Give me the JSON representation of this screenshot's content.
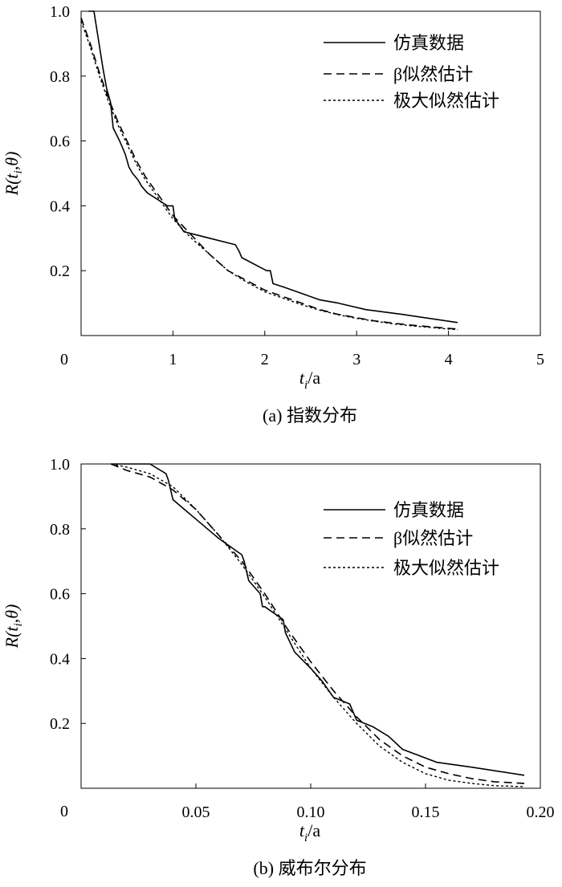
{
  "chart_data": [
    {
      "type": "line",
      "caption": "(a) 指数分布",
      "xlabel": "t_i/a",
      "ylabel": "R(t_i,θ)",
      "xlim": [
        0,
        5
      ],
      "ylim": [
        0,
        1.0
      ],
      "xticks": [
        "0",
        "1",
        "2",
        "3",
        "4",
        "5"
      ],
      "xtick_values": [
        0,
        1,
        2,
        3,
        4,
        5
      ],
      "yticks": [
        "0.2",
        "0.4",
        "0.6",
        "0.8",
        "1.0"
      ],
      "ytick_values": [
        0.2,
        0.4,
        0.6,
        0.8,
        1.0
      ],
      "origin_label": "0",
      "legend_position": "top-right",
      "series": [
        {
          "name": "仿真数据",
          "style": "solid",
          "x": [
            0.08,
            0.14,
            0.24,
            0.28,
            0.32,
            0.35,
            0.42,
            0.48,
            0.52,
            0.56,
            0.62,
            0.66,
            0.72,
            0.94,
            1.0,
            1.02,
            1.12,
            1.68,
            1.72,
            1.75,
            2.02,
            2.06,
            2.09,
            2.2,
            2.4,
            2.6,
            2.8,
            3.1,
            3.5,
            4.1
          ],
          "y": [
            1.0,
            1.0,
            0.82,
            0.76,
            0.72,
            0.64,
            0.6,
            0.56,
            0.52,
            0.5,
            0.48,
            0.46,
            0.44,
            0.4,
            0.4,
            0.36,
            0.32,
            0.28,
            0.26,
            0.24,
            0.2,
            0.2,
            0.16,
            0.15,
            0.13,
            0.11,
            0.1,
            0.08,
            0.065,
            0.04
          ]
        },
        {
          "name": "β似然估计",
          "style": "dashed",
          "x": [
            0.0,
            0.1,
            0.2,
            0.3,
            0.4,
            0.5,
            0.6,
            0.7,
            0.8,
            0.9,
            1.0,
            1.2,
            1.4,
            1.6,
            1.8,
            2.0,
            2.2,
            2.4,
            2.6,
            2.8,
            3.0,
            3.2,
            3.4,
            3.6,
            3.8,
            4.0,
            4.1
          ],
          "y": [
            0.98,
            0.9,
            0.81,
            0.73,
            0.66,
            0.6,
            0.54,
            0.49,
            0.45,
            0.41,
            0.37,
            0.31,
            0.25,
            0.2,
            0.17,
            0.14,
            0.12,
            0.1,
            0.08,
            0.065,
            0.055,
            0.045,
            0.038,
            0.032,
            0.027,
            0.022,
            0.02
          ]
        },
        {
          "name": "极大似然估计",
          "style": "dotted",
          "x": [
            0.0,
            0.1,
            0.2,
            0.3,
            0.4,
            0.5,
            0.6,
            0.7,
            0.8,
            0.9,
            1.0,
            1.2,
            1.4,
            1.6,
            1.8,
            2.0,
            2.2,
            2.4,
            2.6,
            2.8,
            3.0,
            3.2,
            3.4,
            3.6,
            3.8,
            4.0,
            4.1
          ],
          "y": [
            0.97,
            0.89,
            0.8,
            0.72,
            0.65,
            0.59,
            0.53,
            0.48,
            0.44,
            0.4,
            0.36,
            0.3,
            0.25,
            0.2,
            0.165,
            0.135,
            0.115,
            0.095,
            0.078,
            0.064,
            0.053,
            0.044,
            0.036,
            0.03,
            0.025,
            0.02,
            0.018
          ]
        }
      ]
    },
    {
      "type": "line",
      "caption": "(b) 威布尔分布",
      "xlabel": "t_i/a",
      "ylabel": "R(t_i,θ)",
      "xlim": [
        0,
        0.2
      ],
      "ylim": [
        0,
        1.0
      ],
      "xticks": [
        "0.05",
        "0.10",
        "0.15",
        "0.20"
      ],
      "xtick_values": [
        0.05,
        0.1,
        0.15,
        0.2
      ],
      "yticks": [
        "0.2",
        "0.4",
        "0.6",
        "0.8",
        "1.0"
      ],
      "ytick_values": [
        0.2,
        0.4,
        0.6,
        0.8,
        1.0
      ],
      "origin_label": "0",
      "legend_position": "top-right",
      "series": [
        {
          "name": "仿真数据",
          "style": "solid",
          "x": [
            0.013,
            0.03,
            0.037,
            0.038,
            0.04,
            0.045,
            0.05,
            0.055,
            0.06,
            0.07,
            0.071,
            0.073,
            0.078,
            0.079,
            0.08,
            0.088,
            0.089,
            0.093,
            0.1,
            0.105,
            0.11,
            0.117,
            0.12,
            0.127,
            0.134,
            0.14,
            0.155,
            0.17,
            0.193
          ],
          "y": [
            1.0,
            1.0,
            0.97,
            0.95,
            0.89,
            0.86,
            0.83,
            0.8,
            0.77,
            0.72,
            0.7,
            0.64,
            0.6,
            0.56,
            0.56,
            0.52,
            0.48,
            0.42,
            0.37,
            0.33,
            0.28,
            0.26,
            0.21,
            0.19,
            0.16,
            0.12,
            0.08,
            0.065,
            0.04
          ]
        },
        {
          "name": "β似然估计",
          "style": "dashed",
          "x": [
            0.013,
            0.02,
            0.03,
            0.04,
            0.05,
            0.06,
            0.07,
            0.08,
            0.09,
            0.1,
            0.11,
            0.12,
            0.13,
            0.14,
            0.15,
            0.16,
            0.17,
            0.18,
            0.193
          ],
          "y": [
            1.0,
            0.98,
            0.96,
            0.92,
            0.86,
            0.78,
            0.7,
            0.6,
            0.49,
            0.39,
            0.3,
            0.22,
            0.15,
            0.1,
            0.065,
            0.045,
            0.03,
            0.02,
            0.015
          ]
        },
        {
          "name": "极大似然估计",
          "style": "dotted",
          "x": [
            0.013,
            0.02,
            0.03,
            0.04,
            0.05,
            0.06,
            0.07,
            0.08,
            0.09,
            0.1,
            0.11,
            0.12,
            0.13,
            0.14,
            0.15,
            0.16,
            0.17,
            0.18,
            0.193
          ],
          "y": [
            1.0,
            0.99,
            0.97,
            0.93,
            0.86,
            0.78,
            0.69,
            0.59,
            0.48,
            0.37,
            0.28,
            0.2,
            0.13,
            0.08,
            0.045,
            0.025,
            0.015,
            0.008,
            0.005
          ]
        }
      ]
    }
  ]
}
